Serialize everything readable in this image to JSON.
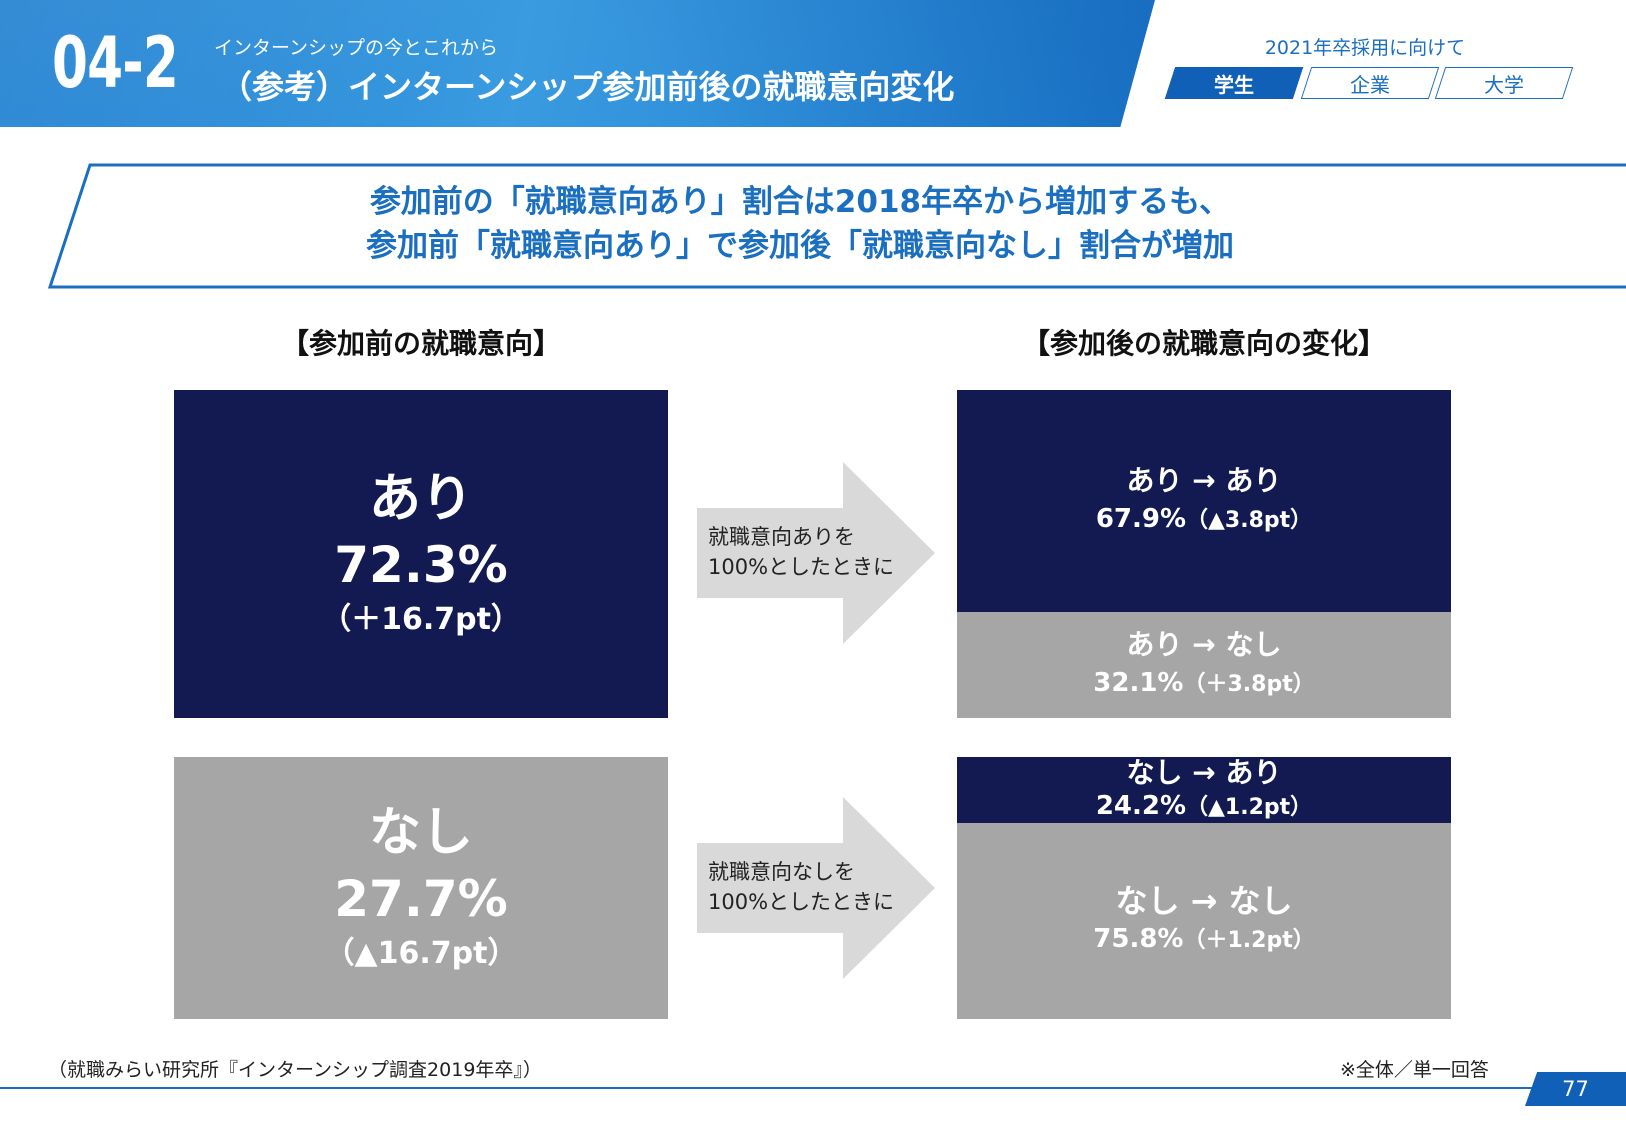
{
  "header": {
    "section_number": "04-2",
    "subtitle": "インターンシップの今とこれから",
    "title": "（参考）インターンシップ参加前後の就職意向変化",
    "right_label": "2021年卒採用に向けて",
    "tabs": [
      {
        "label": "学生",
        "active": true
      },
      {
        "label": "企業",
        "active": false
      },
      {
        "label": "大学",
        "active": false
      }
    ]
  },
  "headline": {
    "line1": "参加前の「就職意向あり」割合は2018年卒から増加するも、",
    "line2": "参加前「就職意向あり」で参加後「就職意向なし」割合が増加"
  },
  "left_title": "【参加前の就職意向】",
  "right_title": "【参加後の就職意向の変化】",
  "before": {
    "yes": {
      "label": "あり",
      "pct": "72.3%",
      "diff": "（＋16.7pt）"
    },
    "no": {
      "label": "なし",
      "pct": "27.7%",
      "diff": "（▲16.7pt）"
    }
  },
  "arrows": {
    "top": {
      "line1": "就職意向ありを",
      "line2": "100%としたときに"
    },
    "bottom": {
      "line1": "就職意向なしを",
      "line2": "100%としたときに"
    }
  },
  "after": {
    "yes_yes": {
      "label": "あり → あり",
      "pct": "67.9%",
      "diff": "（▲3.8pt）"
    },
    "yes_no": {
      "label": "あり → なし",
      "pct": "32.1%",
      "diff": "（＋3.8pt）"
    },
    "no_yes": {
      "label": "なし → あり",
      "pct": "24.2%",
      "diff": "（▲1.2pt）"
    },
    "no_no": {
      "label": "なし → なし",
      "pct": "75.8%",
      "diff": "（＋1.2pt）"
    }
  },
  "footer": {
    "source": "（就職みらい研究所『インターンシップ調査2019年卒』）",
    "note": "※全体／単一回答",
    "page": "77"
  },
  "colors": {
    "navy": "#131a52",
    "gray": "#a6a6a6",
    "accent_blue": "#1b6fc0",
    "arrow_gray": "#d9d9d9"
  }
}
